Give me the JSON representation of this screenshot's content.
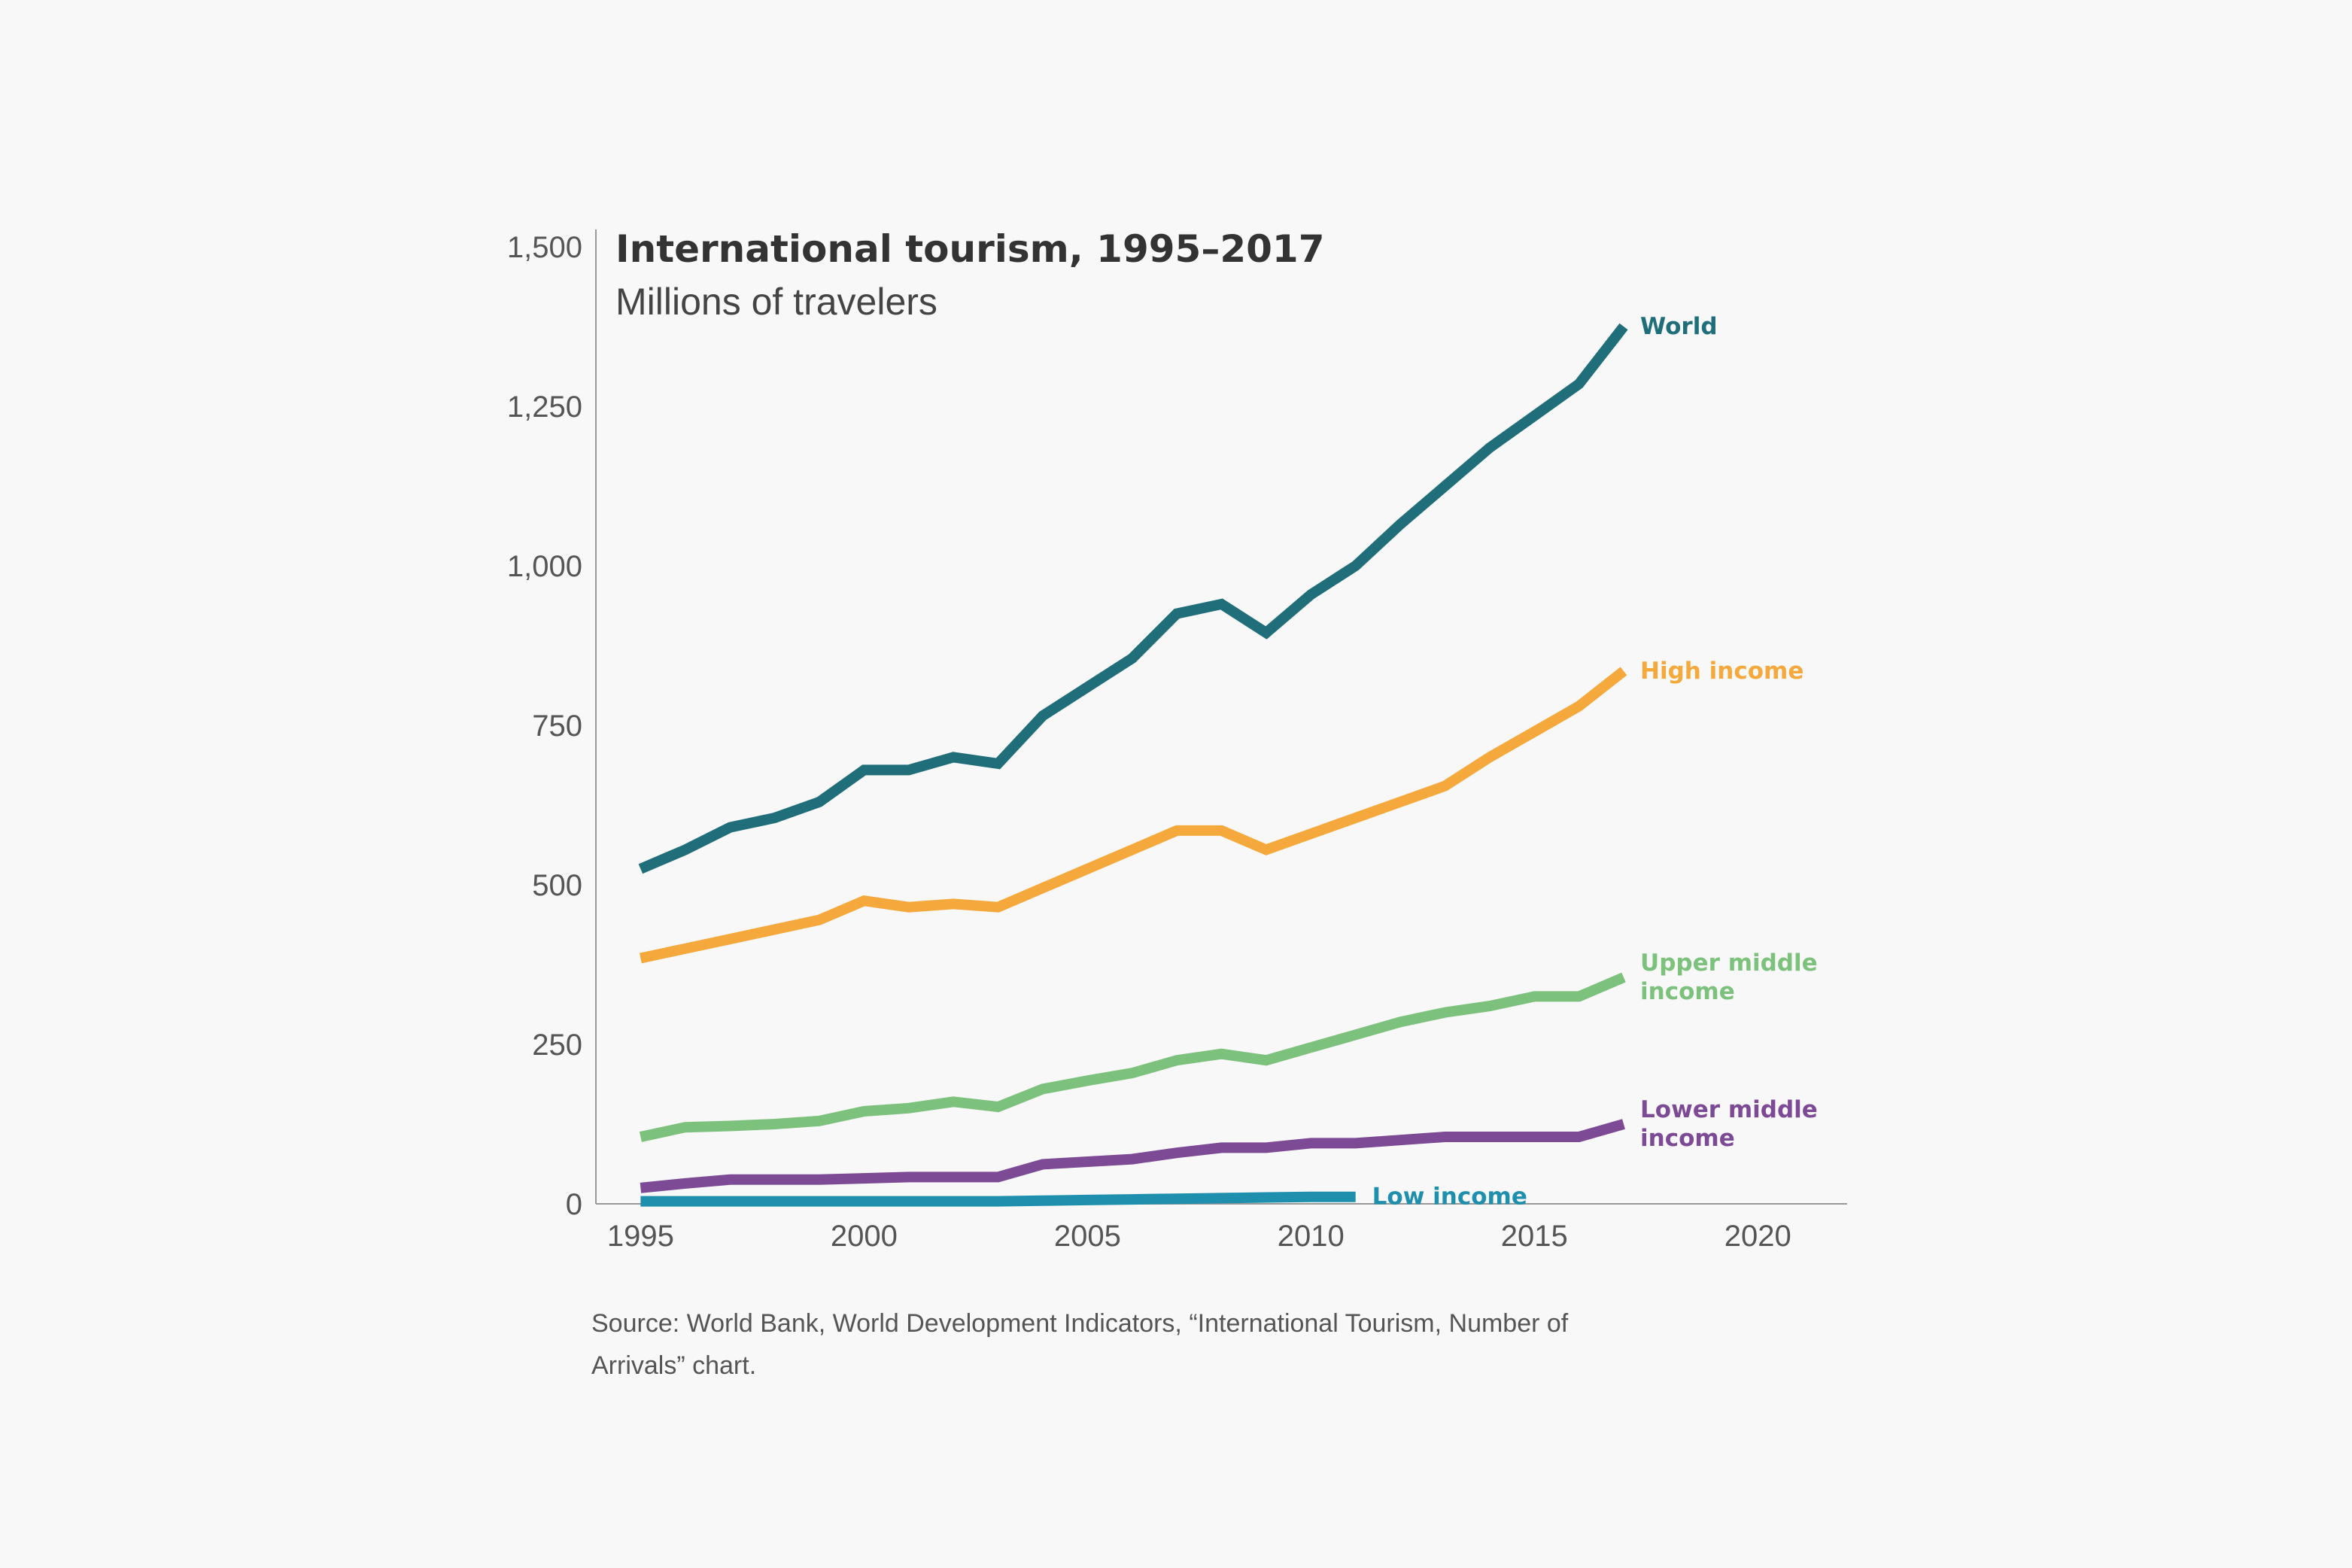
{
  "chart_data": {
    "type": "line",
    "title": "International tourism, 1995–2017",
    "subtitle": "Millions of travelers",
    "xlabel": "",
    "ylabel": "",
    "xlim": [
      1994,
      2022
    ],
    "ylim": [
      0,
      1500
    ],
    "x_ticks": [
      1995,
      2000,
      2005,
      2010,
      2015,
      2020
    ],
    "y_ticks": [
      0,
      250,
      500,
      750,
      1000,
      1250,
      1500
    ],
    "y_tick_labels": [
      "0",
      "250",
      "500",
      "750",
      "1,000",
      "1,250",
      "1,500"
    ],
    "grid": false,
    "legend": "direct labels at line ends",
    "series": [
      {
        "name": "World",
        "color": "#1f6e7a",
        "x": [
          1995,
          1996,
          1997,
          1998,
          1999,
          2000,
          2001,
          2002,
          2003,
          2004,
          2005,
          2006,
          2007,
          2008,
          2009,
          2010,
          2011,
          2012,
          2013,
          2014,
          2015,
          2016,
          2017
        ],
        "values": [
          525,
          555,
          590,
          605,
          630,
          680,
          680,
          700,
          690,
          765,
          810,
          855,
          925,
          940,
          895,
          955,
          1000,
          1065,
          1125,
          1185,
          1235,
          1285,
          1375
        ]
      },
      {
        "name": "High income",
        "color": "#f5a93c",
        "x": [
          1995,
          1996,
          1997,
          1998,
          1999,
          2000,
          2001,
          2002,
          2003,
          2004,
          2005,
          2006,
          2007,
          2008,
          2009,
          2010,
          2011,
          2012,
          2013,
          2014,
          2015,
          2016,
          2017
        ],
        "values": [
          385,
          400,
          415,
          430,
          445,
          475,
          465,
          470,
          465,
          495,
          525,
          555,
          585,
          585,
          555,
          580,
          605,
          630,
          655,
          700,
          740,
          780,
          835
        ]
      },
      {
        "name": "Upper middle income",
        "color": "#7cc17c",
        "x": [
          1995,
          1996,
          1997,
          1998,
          1999,
          2000,
          2001,
          2002,
          2003,
          2004,
          2005,
          2006,
          2007,
          2008,
          2009,
          2010,
          2011,
          2012,
          2013,
          2014,
          2015,
          2016,
          2017
        ],
        "values": [
          105,
          120,
          122,
          125,
          130,
          145,
          150,
          160,
          152,
          180,
          193,
          205,
          225,
          235,
          225,
          245,
          265,
          285,
          300,
          310,
          325,
          325,
          355
        ]
      },
      {
        "name": "Lower middle income",
        "color": "#7d4a95",
        "x": [
          1995,
          1996,
          1997,
          1998,
          1999,
          2000,
          2001,
          2002,
          2003,
          2004,
          2005,
          2006,
          2007,
          2008,
          2009,
          2010,
          2011,
          2012,
          2013,
          2014,
          2015,
          2016,
          2017
        ],
        "values": [
          25,
          32,
          38,
          38,
          38,
          40,
          42,
          42,
          42,
          62,
          66,
          70,
          80,
          88,
          88,
          95,
          95,
          100,
          105,
          105,
          105,
          105,
          125
        ]
      },
      {
        "name": "Low income",
        "color": "#1f8fae",
        "x": [
          1995,
          1996,
          1997,
          1998,
          1999,
          2000,
          2001,
          2002,
          2003,
          2004,
          2005,
          2006,
          2007,
          2008,
          2009,
          2010,
          2011
        ],
        "values": [
          4,
          4,
          4,
          4,
          4,
          4,
          4,
          4,
          4,
          5,
          6,
          7,
          8,
          9,
          10,
          11,
          11
        ]
      }
    ],
    "series_labels": [
      {
        "lines": [
          "World"
        ]
      },
      {
        "lines": [
          "High income"
        ]
      },
      {
        "lines": [
          "Upper middle",
          "income"
        ]
      },
      {
        "lines": [
          "Lower middle",
          "income"
        ]
      },
      {
        "lines": [
          "Low income"
        ]
      }
    ],
    "axis_color": "#999999"
  },
  "source": {
    "line1": "Source: World Bank, World Development Indicators, “International Tourism, Number of",
    "line2": "Arrivals” chart."
  }
}
